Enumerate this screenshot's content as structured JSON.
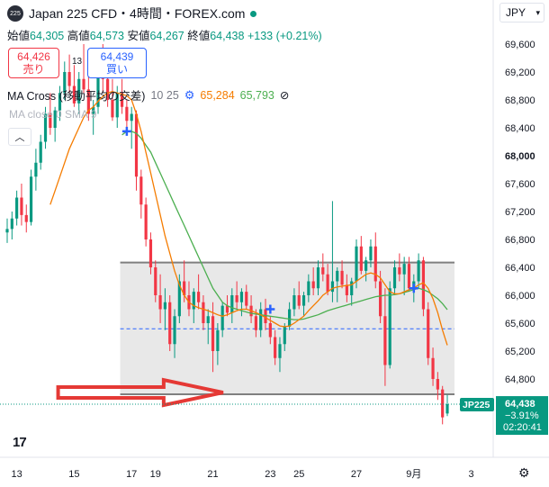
{
  "header": {
    "symbol_logo": "225",
    "title": "Japan 225 CFD・4時間・FOREX.com",
    "open_label": "始値",
    "open": "64,305",
    "high_label": "高値",
    "high": "64,573",
    "low_label": "安値",
    "low": "64,267",
    "close_label": "終値",
    "close": "64,438",
    "change": "+133 (+0.21%)",
    "sell_price": "64,426",
    "sell_label": "売り",
    "spread": "13",
    "buy_price": "64,439",
    "buy_label": "買い",
    "ma_label": "MA Cross (移動平均の交差)",
    "ma_params": "10 25",
    "ma_fast_value": "65,284",
    "ma_slow_value": "65,793",
    "ma_fast_color": "#f57c00",
    "ma_slow_color": "#4caf50",
    "vol_label": "MA  close 0 SMA 9",
    "collapse_icon": "chevron-up-icon",
    "currency": "JPY",
    "settings_icon": "gear-icon"
  },
  "colors": {
    "up": "#089981",
    "down": "#f23645",
    "box_fill": "#e8e8e8",
    "box_border": "#808080",
    "arrow": "#e53935",
    "midline": "#2962ff",
    "cross_marker": "#2962ff"
  },
  "chart_data": {
    "type": "candlestick",
    "y_ticks": [
      "69,600",
      "69,200",
      "68,800",
      "68,400",
      "68,000",
      "67,600",
      "67,200",
      "66,800",
      "66,400",
      "66,000",
      "65,600",
      "65,200",
      "64,800"
    ],
    "ylim": [
      64100,
      69900
    ],
    "x_ticks": [
      {
        "label": "13",
        "i": 2
      },
      {
        "label": "15",
        "i": 14
      },
      {
        "label": "17",
        "i": 26
      },
      {
        "label": "19",
        "i": 31
      },
      {
        "label": "21",
        "i": 43
      },
      {
        "label": "23",
        "i": 55
      },
      {
        "label": "25",
        "i": 61
      },
      {
        "label": "27",
        "i": 73
      },
      {
        "label": "9月",
        "i": 85
      },
      {
        "label": "3",
        "i": 97
      }
    ],
    "candles": [
      [
        66900,
        67100,
        66750,
        66950
      ],
      [
        66950,
        67200,
        66800,
        67100
      ],
      [
        67100,
        67500,
        67000,
        67400
      ],
      [
        67400,
        67600,
        67000,
        67150
      ],
      [
        67150,
        67300,
        66900,
        67050
      ],
      [
        67050,
        67800,
        67000,
        67700
      ],
      [
        67700,
        68100,
        67500,
        67900
      ],
      [
        67900,
        68300,
        67800,
        68200
      ],
      [
        68200,
        68700,
        68100,
        68600
      ],
      [
        68600,
        68900,
        68300,
        68400
      ],
      [
        68400,
        68700,
        68200,
        68650
      ],
      [
        68650,
        69000,
        68500,
        68900
      ],
      [
        68900,
        69350,
        68800,
        69200
      ],
      [
        69200,
        69450,
        68900,
        69000
      ],
      [
        69000,
        69300,
        68700,
        68750
      ],
      [
        68750,
        69200,
        68600,
        69100
      ],
      [
        69100,
        69600,
        68900,
        68950
      ],
      [
        68950,
        69200,
        68500,
        68600
      ],
      [
        68600,
        68800,
        68300,
        68700
      ],
      [
        68700,
        69300,
        68600,
        69200
      ],
      [
        69200,
        69600,
        68900,
        69100
      ],
      [
        69100,
        69300,
        68700,
        68800
      ],
      [
        68800,
        69100,
        68500,
        68550
      ],
      [
        68550,
        69000,
        68400,
        68900
      ],
      [
        68900,
        69100,
        68600,
        68700
      ],
      [
        68700,
        68800,
        68400,
        68500
      ],
      [
        68500,
        68700,
        68100,
        68600
      ],
      [
        68600,
        68650,
        67500,
        67700
      ],
      [
        67700,
        67800,
        67100,
        67300
      ],
      [
        67300,
        67400,
        66700,
        66800
      ],
      [
        66800,
        66900,
        66300,
        66400
      ],
      [
        66400,
        66500,
        65900,
        66000
      ],
      [
        66000,
        66300,
        65600,
        65800
      ],
      [
        65800,
        66100,
        65500,
        65900
      ],
      [
        65900,
        66000,
        65200,
        65300
      ],
      [
        65300,
        65800,
        65100,
        65700
      ],
      [
        65700,
        66300,
        65600,
        66200
      ],
      [
        66200,
        66500,
        65900,
        66000
      ],
      [
        66000,
        66200,
        65700,
        65800
      ],
      [
        65800,
        66100,
        65600,
        66050
      ],
      [
        66050,
        66300,
        65800,
        65900
      ],
      [
        65900,
        66000,
        65500,
        65600
      ],
      [
        65600,
        65800,
        65300,
        65700
      ],
      [
        65700,
        65900,
        64900,
        65200
      ],
      [
        65200,
        65600,
        65000,
        65500
      ],
      [
        65500,
        65900,
        65400,
        65850
      ],
      [
        65850,
        66000,
        65700,
        65750
      ],
      [
        65750,
        66100,
        65600,
        66000
      ],
      [
        66000,
        66200,
        65800,
        65900
      ],
      [
        65900,
        66100,
        65700,
        66050
      ],
      [
        66050,
        66150,
        65800,
        65850
      ],
      [
        65850,
        66000,
        65600,
        65700
      ],
      [
        65700,
        65800,
        65400,
        65500
      ],
      [
        65500,
        65900,
        65400,
        65800
      ],
      [
        65800,
        65950,
        65500,
        65600
      ],
      [
        65600,
        65700,
        65300,
        65400
      ],
      [
        65400,
        65500,
        65000,
        65100
      ],
      [
        65100,
        65400,
        64900,
        65300
      ],
      [
        65300,
        65600,
        65200,
        65550
      ],
      [
        65550,
        65900,
        65500,
        65800
      ],
      [
        65800,
        66100,
        65700,
        66000
      ],
      [
        66000,
        66200,
        65800,
        65850
      ],
      [
        65850,
        66050,
        65700,
        66000
      ],
      [
        66000,
        66300,
        65900,
        66200
      ],
      [
        66200,
        66400,
        66000,
        66100
      ],
      [
        66100,
        66500,
        66000,
        66400
      ],
      [
        66400,
        66600,
        66200,
        66300
      ],
      [
        66300,
        66450,
        66000,
        66050
      ],
      [
        66050,
        67350,
        65900,
        66200
      ],
      [
        66200,
        66400,
        65900,
        66350
      ],
      [
        66350,
        66500,
        66100,
        66150
      ],
      [
        66150,
        66300,
        65900,
        66000
      ],
      [
        66000,
        66250,
        65850,
        66200
      ],
      [
        66200,
        66800,
        66100,
        66700
      ],
      [
        66700,
        66850,
        66300,
        66350
      ],
      [
        66350,
        66550,
        66200,
        66500
      ],
      [
        66500,
        66800,
        66400,
        66700
      ],
      [
        66700,
        66900,
        66100,
        66200
      ],
      [
        66200,
        66350,
        65600,
        65700
      ],
      [
        65700,
        66100,
        64700,
        65000
      ],
      [
        65000,
        66200,
        64950,
        66100
      ],
      [
        66100,
        66500,
        66000,
        66400
      ],
      [
        66400,
        66600,
        66200,
        66300
      ],
      [
        66300,
        66550,
        66000,
        66450
      ],
      [
        66450,
        66550,
        66050,
        66100
      ],
      [
        66100,
        66300,
        65900,
        66200
      ],
      [
        66200,
        66600,
        66100,
        66500
      ],
      [
        66500,
        66550,
        65700,
        65800
      ],
      [
        65800,
        65900,
        65000,
        65100
      ],
      [
        65100,
        65250,
        64700,
        64800
      ],
      [
        64800,
        64900,
        64500,
        64650
      ],
      [
        64650,
        64700,
        64150,
        64250
      ],
      [
        64305,
        64573,
        64267,
        64438
      ]
    ],
    "ma_fast": [
      null,
      null,
      null,
      null,
      null,
      null,
      null,
      null,
      null,
      67300,
      67500,
      67700,
      67900,
      68100,
      68250,
      68400,
      68550,
      68650,
      68700,
      68780,
      68850,
      68900,
      68920,
      68900,
      68880,
      68860,
      68800,
      68600,
      68350,
      68050,
      67750,
      67450,
      67150,
      66850,
      66600,
      66350,
      66150,
      66000,
      65900,
      65850,
      65820,
      65800,
      65780,
      65750,
      65720,
      65700,
      65720,
      65750,
      65780,
      65800,
      65800,
      65780,
      65750,
      65720,
      65680,
      65640,
      65600,
      65560,
      65550,
      65560,
      65600,
      65650,
      65700,
      65780,
      65850,
      65920,
      66000,
      66050,
      66100,
      66120,
      66130,
      66140,
      66150,
      66200,
      66250,
      66300,
      66320,
      66300,
      66250,
      66150,
      66050,
      66020,
      66020,
      66050,
      66080,
      66100,
      66150,
      66180,
      66100,
      65950,
      65750,
      65500,
      65284
    ],
    "ma_slow": [
      null,
      null,
      null,
      null,
      null,
      null,
      null,
      null,
      null,
      null,
      null,
      null,
      null,
      null,
      null,
      null,
      null,
      null,
      null,
      null,
      null,
      null,
      null,
      null,
      68300,
      68350,
      68350,
      68320,
      68250,
      68150,
      68050,
      67900,
      67750,
      67600,
      67450,
      67300,
      67150,
      67000,
      66850,
      66700,
      66550,
      66400,
      66250,
      66100,
      66000,
      65900,
      65850,
      65820,
      65800,
      65780,
      65760,
      65740,
      65730,
      65720,
      65710,
      65700,
      65690,
      65680,
      65670,
      65660,
      65650,
      65650,
      65660,
      65680,
      65700,
      65720,
      65750,
      65780,
      65800,
      65820,
      65840,
      65860,
      65880,
      65900,
      65920,
      65940,
      65960,
      65980,
      65990,
      66000,
      66000,
      66010,
      66020,
      66040,
      66060,
      66080,
      66100,
      66080,
      66050,
      66000,
      65950,
      65880,
      65793
    ],
    "range_box": {
      "top": 66470,
      "bottom": 64580,
      "mid": 65520,
      "i_start": 24,
      "i_end": 92
    },
    "arrow": {
      "tip_price": 64580,
      "i_tail": 5,
      "i_tip": 44
    },
    "cross_markers": [
      {
        "i": 25,
        "price": 68350
      },
      {
        "i": 55,
        "price": 65800
      },
      {
        "i": 85,
        "price": 66100
      }
    ],
    "last_price_tag": {
      "symbol": "JP225",
      "price": "64,438",
      "change": "−3.91%",
      "timer": "02:20:41",
      "value": 64438
    }
  }
}
